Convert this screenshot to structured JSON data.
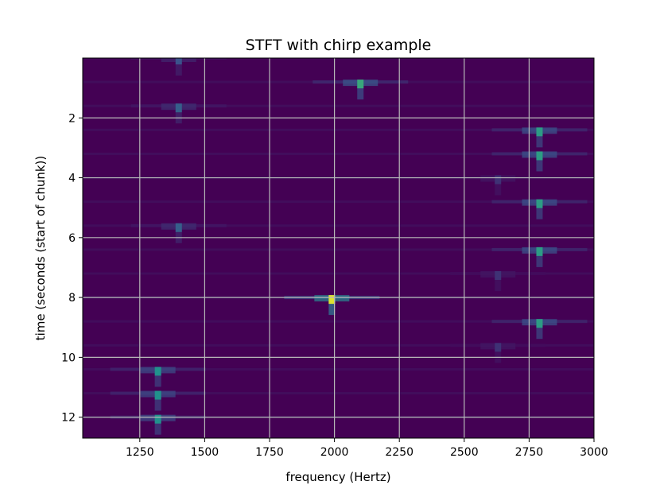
{
  "chart_data": {
    "type": "heatmap",
    "title": "STFT with chirp example",
    "xlabel": "frequency (Hertz)",
    "ylabel": "time (seconds (start of chunk))",
    "xlim": [
      1030,
      3000
    ],
    "ylim": [
      12.7,
      0
    ],
    "y_inverted": true,
    "grid": true,
    "colormap": "viridis",
    "background_color": "#440154",
    "grid_color": "#b8b8b8",
    "x_ticks": [
      {
        "value": 1250,
        "label": "1250"
      },
      {
        "value": 1500,
        "label": "1500"
      },
      {
        "value": 1750,
        "label": "1750"
      },
      {
        "value": 2000,
        "label": "2000"
      },
      {
        "value": 2250,
        "label": "2250"
      },
      {
        "value": 2500,
        "label": "2500"
      },
      {
        "value": 2750,
        "label": "2750"
      },
      {
        "value": 3000,
        "label": "3000"
      }
    ],
    "y_ticks": [
      {
        "value": 2,
        "label": "2"
      },
      {
        "value": 4,
        "label": "4"
      },
      {
        "value": 6,
        "label": "6"
      },
      {
        "value": 8,
        "label": "8"
      },
      {
        "value": 10,
        "label": "10"
      },
      {
        "value": 12,
        "label": "12"
      }
    ],
    "peaks": [
      {
        "frequency": 1400,
        "time": 0.0,
        "intensity": 0.25
      },
      {
        "frequency": 2100,
        "time": 0.8,
        "intensity": 0.6
      },
      {
        "frequency": 1400,
        "time": 1.6,
        "intensity": 0.3
      },
      {
        "frequency": 2790,
        "time": 2.4,
        "intensity": 0.55
      },
      {
        "frequency": 2790,
        "time": 3.2,
        "intensity": 0.55
      },
      {
        "frequency": 2630,
        "time": 4.0,
        "intensity": 0.15
      },
      {
        "frequency": 2790,
        "time": 4.8,
        "intensity": 0.55
      },
      {
        "frequency": 1400,
        "time": 5.6,
        "intensity": 0.3
      },
      {
        "frequency": 2790,
        "time": 6.4,
        "intensity": 0.55
      },
      {
        "frequency": 2630,
        "time": 7.2,
        "intensity": 0.15
      },
      {
        "frequency": 1990,
        "time": 8.0,
        "intensity": 0.95
      },
      {
        "frequency": 2790,
        "time": 8.8,
        "intensity": 0.55
      },
      {
        "frequency": 2630,
        "time": 9.6,
        "intensity": 0.15
      },
      {
        "frequency": 1320,
        "time": 10.4,
        "intensity": 0.5
      },
      {
        "frequency": 1320,
        "time": 11.2,
        "intensity": 0.5
      },
      {
        "frequency": 1320,
        "time": 12.0,
        "intensity": 0.5
      }
    ]
  }
}
